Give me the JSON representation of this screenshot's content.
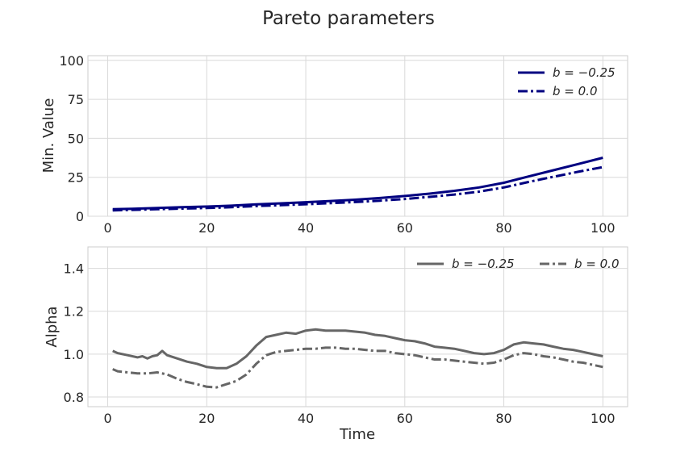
{
  "figure_title": "Pareto parameters",
  "chart_data": [
    {
      "type": "line",
      "title": "",
      "xlabel": "",
      "ylabel": "Min. Value",
      "xlim": [
        -4,
        105
      ],
      "ylim": [
        0,
        103
      ],
      "xticks": [
        0,
        20,
        40,
        60,
        80,
        100
      ],
      "yticks": [
        0,
        25,
        50,
        75,
        100
      ],
      "grid": true,
      "legend_position": "top-right",
      "legend_columns": 1,
      "series": [
        {
          "name": "b = −0.25",
          "color": "#000080",
          "style": "solid",
          "points": [
            [
              1,
              4.5
            ],
            [
              5,
              4.8
            ],
            [
              10,
              5.3
            ],
            [
              15,
              5.8
            ],
            [
              20,
              6.2
            ],
            [
              25,
              6.8
            ],
            [
              30,
              7.6
            ],
            [
              35,
              8.3
            ],
            [
              40,
              9.0
            ],
            [
              45,
              9.8
            ],
            [
              50,
              10.6
            ],
            [
              55,
              11.7
            ],
            [
              60,
              13.0
            ],
            [
              65,
              14.5
            ],
            [
              70,
              16.3
            ],
            [
              75,
              18.5
            ],
            [
              80,
              21.5
            ],
            [
              85,
              25.5
            ],
            [
              90,
              29.5
            ],
            [
              95,
              33.5
            ],
            [
              100,
              37.5
            ]
          ]
        },
        {
          "name": "b = 0.0",
          "color": "#000080",
          "style": "dashdot",
          "points": [
            [
              1,
              3.8
            ],
            [
              5,
              4.1
            ],
            [
              10,
              4.5
            ],
            [
              15,
              4.9
            ],
            [
              20,
              5.3
            ],
            [
              25,
              5.8
            ],
            [
              30,
              6.5
            ],
            [
              35,
              7.1
            ],
            [
              40,
              7.7
            ],
            [
              45,
              8.4
            ],
            [
              50,
              9.1
            ],
            [
              55,
              10.0
            ],
            [
              60,
              11.1
            ],
            [
              65,
              12.4
            ],
            [
              70,
              13.9
            ],
            [
              75,
              15.8
            ],
            [
              80,
              18.5
            ],
            [
              85,
              22.0
            ],
            [
              90,
              25.3
            ],
            [
              95,
              28.5
            ],
            [
              100,
              31.5
            ]
          ]
        }
      ]
    },
    {
      "type": "line",
      "title": "",
      "xlabel": "Time",
      "ylabel": "Alpha",
      "xlim": [
        -4,
        105
      ],
      "ylim": [
        0.755,
        1.5
      ],
      "xticks": [
        0,
        20,
        40,
        60,
        80,
        100
      ],
      "yticks": [
        0.8,
        1.0,
        1.2,
        1.4
      ],
      "grid": true,
      "legend_position": "top-right",
      "legend_columns": 2,
      "series": [
        {
          "name": "b = −0.25",
          "color": "#666666",
          "style": "solid",
          "points": [
            [
              1,
              1.015
            ],
            [
              2,
              1.005
            ],
            [
              4,
              0.995
            ],
            [
              6,
              0.985
            ],
            [
              7,
              0.99
            ],
            [
              8,
              0.98
            ],
            [
              9,
              0.99
            ],
            [
              10,
              0.995
            ],
            [
              11,
              1.015
            ],
            [
              12,
              0.995
            ],
            [
              14,
              0.98
            ],
            [
              16,
              0.965
            ],
            [
              18,
              0.955
            ],
            [
              20,
              0.94
            ],
            [
              22,
              0.935
            ],
            [
              24,
              0.935
            ],
            [
              26,
              0.955
            ],
            [
              28,
              0.99
            ],
            [
              30,
              1.04
            ],
            [
              32,
              1.08
            ],
            [
              34,
              1.09
            ],
            [
              36,
              1.1
            ],
            [
              38,
              1.095
            ],
            [
              40,
              1.11
            ],
            [
              42,
              1.115
            ],
            [
              44,
              1.11
            ],
            [
              46,
              1.11
            ],
            [
              48,
              1.11
            ],
            [
              50,
              1.105
            ],
            [
              52,
              1.1
            ],
            [
              54,
              1.09
            ],
            [
              56,
              1.085
            ],
            [
              58,
              1.075
            ],
            [
              60,
              1.065
            ],
            [
              62,
              1.06
            ],
            [
              64,
              1.05
            ],
            [
              66,
              1.035
            ],
            [
              68,
              1.03
            ],
            [
              70,
              1.025
            ],
            [
              72,
              1.015
            ],
            [
              74,
              1.005
            ],
            [
              76,
              1.0
            ],
            [
              78,
              1.005
            ],
            [
              80,
              1.02
            ],
            [
              82,
              1.045
            ],
            [
              84,
              1.055
            ],
            [
              86,
              1.05
            ],
            [
              88,
              1.045
            ],
            [
              90,
              1.035
            ],
            [
              92,
              1.025
            ],
            [
              94,
              1.02
            ],
            [
              96,
              1.01
            ],
            [
              98,
              1.0
            ],
            [
              100,
              0.99
            ]
          ]
        },
        {
          "name": "b = 0.0",
          "color": "#666666",
          "style": "dashdot",
          "points": [
            [
              1,
              0.93
            ],
            [
              2,
              0.92
            ],
            [
              4,
              0.915
            ],
            [
              6,
              0.91
            ],
            [
              8,
              0.91
            ],
            [
              10,
              0.915
            ],
            [
              12,
              0.905
            ],
            [
              14,
              0.885
            ],
            [
              16,
              0.87
            ],
            [
              18,
              0.86
            ],
            [
              20,
              0.848
            ],
            [
              22,
              0.845
            ],
            [
              24,
              0.86
            ],
            [
              26,
              0.875
            ],
            [
              28,
              0.905
            ],
            [
              30,
              0.955
            ],
            [
              32,
              0.995
            ],
            [
              34,
              1.01
            ],
            [
              36,
              1.015
            ],
            [
              38,
              1.02
            ],
            [
              40,
              1.025
            ],
            [
              42,
              1.025
            ],
            [
              44,
              1.03
            ],
            [
              46,
              1.03
            ],
            [
              48,
              1.025
            ],
            [
              50,
              1.025
            ],
            [
              52,
              1.02
            ],
            [
              54,
              1.015
            ],
            [
              56,
              1.015
            ],
            [
              58,
              1.005
            ],
            [
              60,
              1.0
            ],
            [
              62,
              0.995
            ],
            [
              64,
              0.985
            ],
            [
              66,
              0.975
            ],
            [
              68,
              0.975
            ],
            [
              70,
              0.97
            ],
            [
              72,
              0.965
            ],
            [
              74,
              0.96
            ],
            [
              76,
              0.955
            ],
            [
              78,
              0.96
            ],
            [
              80,
              0.975
            ],
            [
              82,
              0.995
            ],
            [
              84,
              1.005
            ],
            [
              86,
              1.0
            ],
            [
              88,
              0.99
            ],
            [
              90,
              0.985
            ],
            [
              92,
              0.975
            ],
            [
              94,
              0.965
            ],
            [
              96,
              0.96
            ],
            [
              98,
              0.95
            ],
            [
              100,
              0.94
            ]
          ]
        }
      ]
    }
  ]
}
